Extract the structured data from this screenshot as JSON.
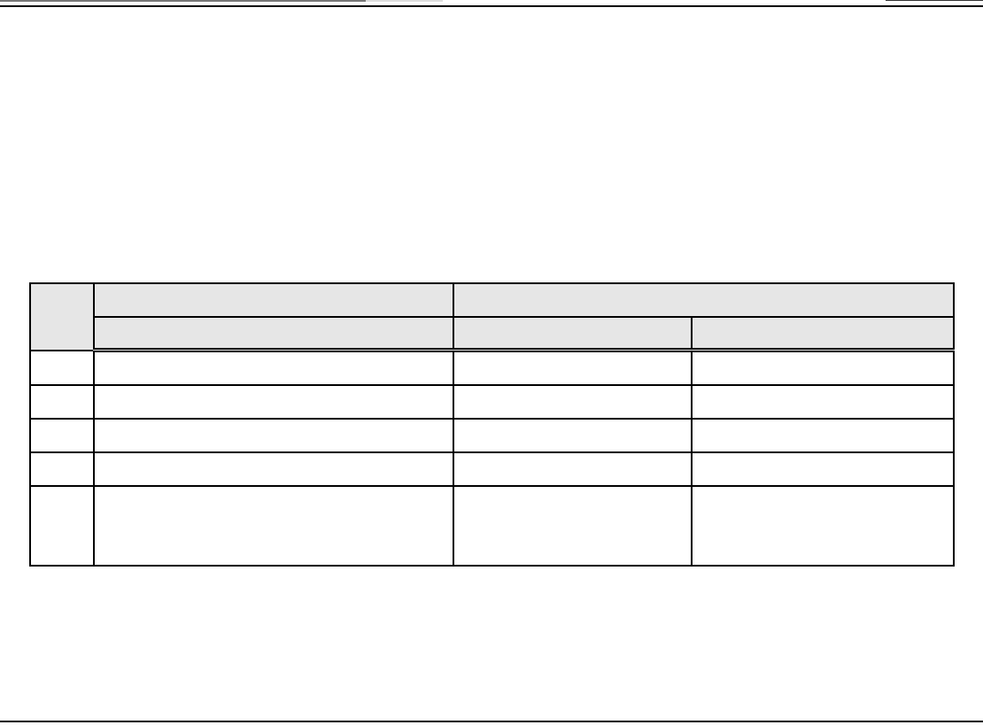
{
  "colors": {
    "header_fill": "#e6e6e6",
    "border": "#000000"
  },
  "table": {
    "header_row1": [
      "",
      "",
      ""
    ],
    "header_row2": [
      "",
      "",
      ""
    ],
    "rows": [
      [
        "",
        "",
        "",
        ""
      ],
      [
        "",
        "",
        "",
        ""
      ],
      [
        "",
        "",
        "",
        ""
      ],
      [
        "",
        "",
        "",
        ""
      ],
      [
        "",
        "",
        "",
        ""
      ]
    ]
  }
}
